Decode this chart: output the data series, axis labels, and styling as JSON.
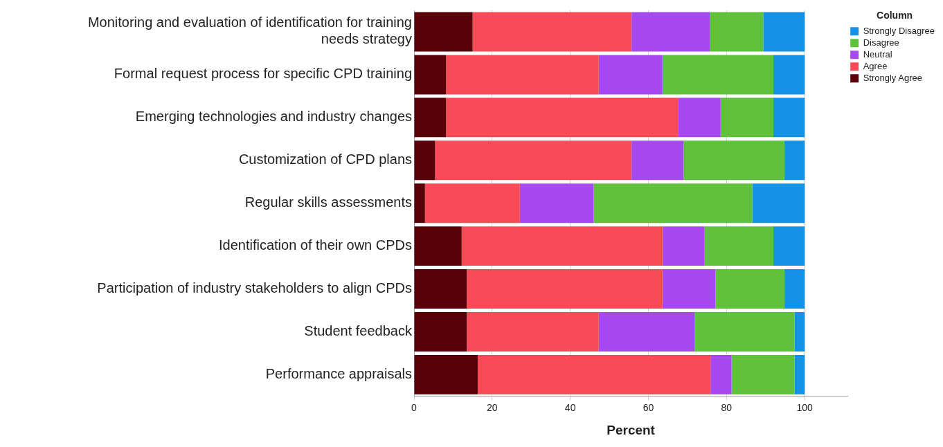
{
  "chart_data": {
    "type": "bar",
    "orientation": "horizontal",
    "stacked": true,
    "xlabel": "Percent",
    "legend_title": "Column",
    "legend": "top right",
    "grid": "x",
    "categories": [
      "Monitoring and evaluation of identification for training needs strategy",
      "Formal request process for specific CPD training",
      "Emerging technologies and industry changes",
      "Customization of CPD plans",
      "Regular skills assessments",
      "Identification of their own CPDs",
      "Participation of industry stakeholders to align CPDs",
      "Student feedback",
      "Performance appraisals"
    ],
    "series": [
      {
        "name": "Strongly Agree",
        "color": "#5a0008",
        "values": [
          15.0,
          8.2,
          8.2,
          5.4,
          2.8,
          12.2,
          13.5,
          13.5,
          16.3
        ]
      },
      {
        "name": "Agree",
        "color": "#f94b57",
        "values": [
          40.7,
          39.1,
          59.5,
          50.3,
          24.3,
          51.4,
          50.1,
          33.8,
          59.6
        ]
      },
      {
        "name": "Neutral",
        "color": "#a64af0",
        "values": [
          20.0,
          16.3,
          10.8,
          13.3,
          18.9,
          10.8,
          13.6,
          24.5,
          5.4
        ]
      },
      {
        "name": "Disagree",
        "color": "#5fc23a",
        "values": [
          13.7,
          28.4,
          13.5,
          25.8,
          40.6,
          17.6,
          17.6,
          25.6,
          16.1
        ]
      },
      {
        "name": "Strongly Disagree",
        "color": "#1492e6",
        "values": [
          10.6,
          8.0,
          8.0,
          5.2,
          13.4,
          8.0,
          5.2,
          2.6,
          2.6
        ]
      }
    ],
    "xlim": [
      0,
      111
    ],
    "xticks": [
      0,
      20,
      40,
      60,
      80,
      100
    ]
  }
}
